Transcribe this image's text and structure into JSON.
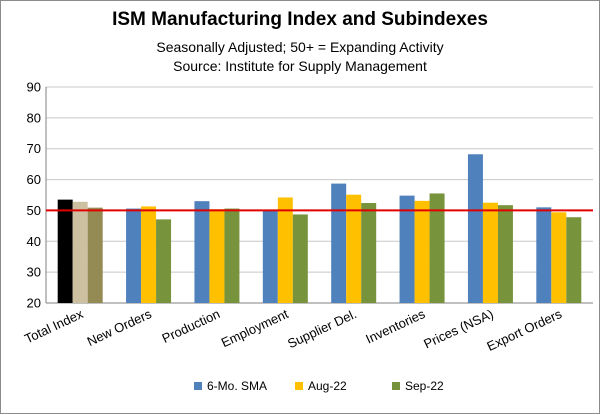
{
  "chart_data": {
    "type": "bar",
    "title": "ISM Manufacturing Index and Subindexes",
    "subtitle_lines": [
      "Seasonally Adjusted; 50+ = Expanding Activity",
      "Source:  Institute for Supply Management"
    ],
    "categories": [
      "Total Index",
      "New Orders",
      "Production",
      "Employment",
      "Supplier Del.",
      "Inventories",
      "Prices (NSA)",
      "Export Orders"
    ],
    "series": [
      {
        "name": "6-Mo. SMA",
        "color": "#4f81bd",
        "values": [
          53.5,
          50.6,
          53.0,
          50.2,
          58.7,
          54.8,
          68.2,
          51.0
        ]
      },
      {
        "name": "Aug-22",
        "color": "#ffc000",
        "values": [
          52.8,
          51.3,
          50.4,
          54.2,
          55.1,
          53.1,
          52.5,
          49.4
        ]
      },
      {
        "name": "Sep-22",
        "color": "#77933c",
        "values": [
          50.9,
          47.1,
          50.6,
          48.7,
          52.4,
          55.5,
          51.7,
          47.8
        ]
      }
    ],
    "total_index_colors": [
      "#000000",
      "#ccc0a0",
      "#948a54"
    ],
    "reference_line": {
      "value": 50,
      "color": "#e00000"
    },
    "ylim": [
      20,
      90
    ],
    "yticks": [
      20,
      30,
      40,
      50,
      60,
      70,
      80,
      90
    ],
    "grid": true,
    "legend_position": "bottom"
  }
}
